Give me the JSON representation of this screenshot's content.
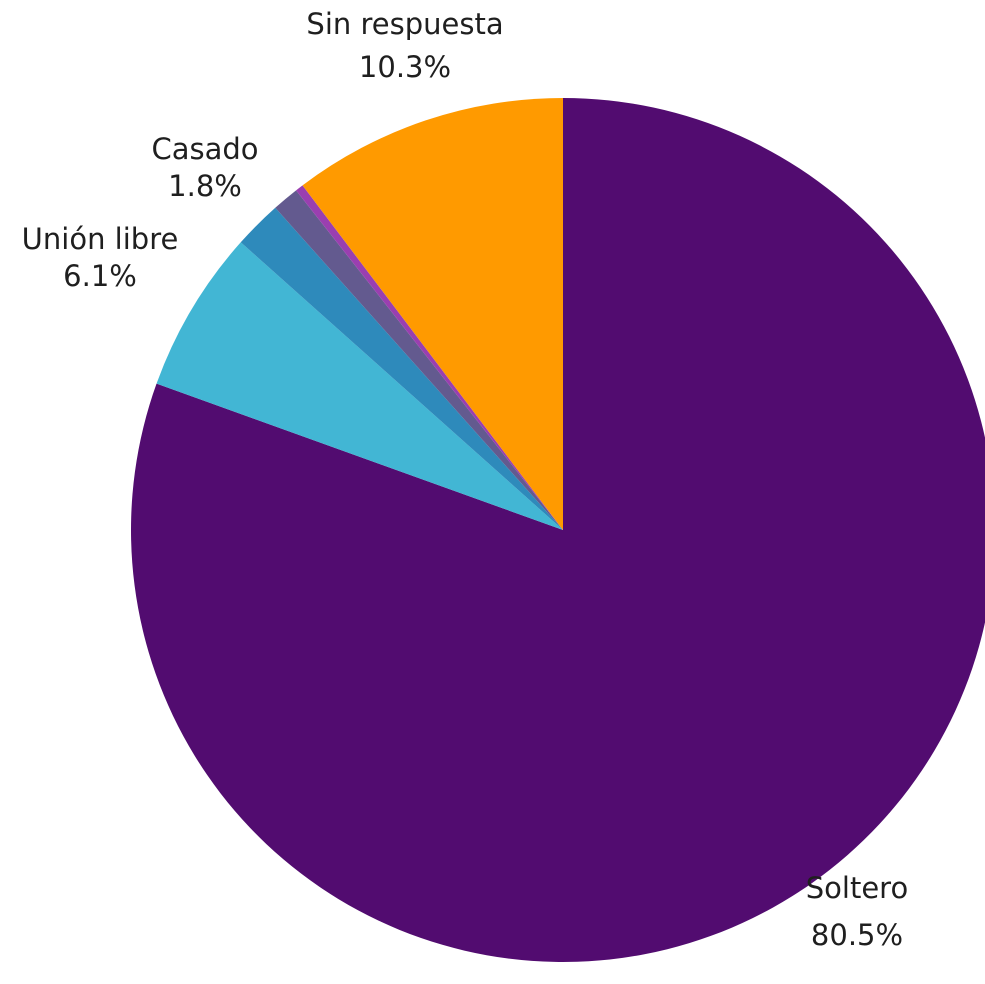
{
  "chart_data": {
    "type": "pie",
    "start_angle_deg": 0,
    "direction": "clockwise",
    "slices": [
      {
        "label": "Soltero",
        "value": 80.5,
        "value_label": "80.5%",
        "color": "#520c70",
        "show_label": true
      },
      {
        "label": "Unión libre",
        "value": 6.1,
        "value_label": "6.1%",
        "color": "#42b6d4",
        "show_label": true
      },
      {
        "label": "Casado",
        "value": 1.8,
        "value_label": "1.8%",
        "color": "#2e8abb",
        "show_label": true
      },
      {
        "label": "",
        "value": 1.0,
        "value_label": "",
        "color": "#635a8f",
        "show_label": false
      },
      {
        "label": "",
        "value": 0.3,
        "value_label": "",
        "color": "#9a3fb0",
        "show_label": false
      },
      {
        "label": "Sin respuesta",
        "value": 10.3,
        "value_label": "10.3%",
        "color": "#ff9a00",
        "show_label": true
      }
    ]
  }
}
